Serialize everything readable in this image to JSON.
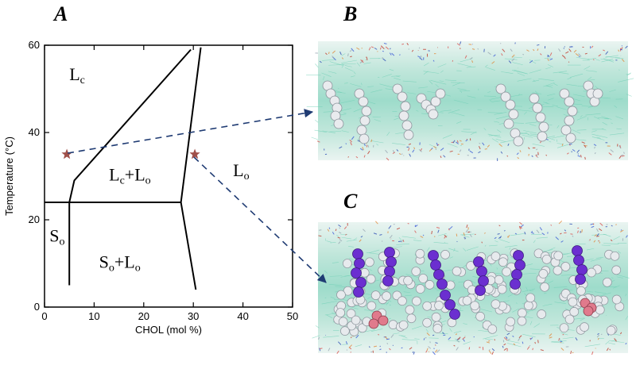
{
  "panels": {
    "a": "A",
    "b": "B",
    "c": "C"
  },
  "chart_data": {
    "type": "phase-diagram",
    "xlabel": "CHOL (mol %)",
    "ylabel": "Temperature (°C)",
    "xlim": [
      0,
      50
    ],
    "ylim": [
      0,
      60
    ],
    "xticks": [
      "0",
      "10",
      "20",
      "30",
      "40",
      "50"
    ],
    "yticks": [
      "0",
      "20",
      "40",
      "60"
    ],
    "boundaries": [
      {
        "points": [
          [
            30.5,
            4
          ],
          [
            27.5,
            24
          ],
          [
            31.5,
            59.5
          ]
        ]
      },
      {
        "points": [
          [
            5,
            5
          ],
          [
            5,
            24
          ],
          [
            6,
            29
          ],
          [
            29.5,
            59
          ]
        ]
      },
      {
        "points": [
          [
            0,
            24
          ],
          [
            27.5,
            24
          ]
        ]
      }
    ],
    "regions": [
      {
        "main": "L",
        "sub": "c",
        "x": 5,
        "y": 52
      },
      {
        "main": "L",
        "sub": "c",
        "tail": "+L",
        "sub2": "o",
        "x": 13,
        "y": 29
      },
      {
        "main": "L",
        "sub": "o",
        "x": 38,
        "y": 30
      },
      {
        "main": "S",
        "sub": "o",
        "x": 1,
        "y": 15
      },
      {
        "main": "S",
        "sub": "o",
        "tail": "+L",
        "sub2": "o",
        "x": 11,
        "y": 9
      }
    ],
    "markers": [
      {
        "x": 4.5,
        "y": 35,
        "color": "#a0504a"
      },
      {
        "x": 30.3,
        "y": 35,
        "color": "#a0504a"
      }
    ]
  }
}
